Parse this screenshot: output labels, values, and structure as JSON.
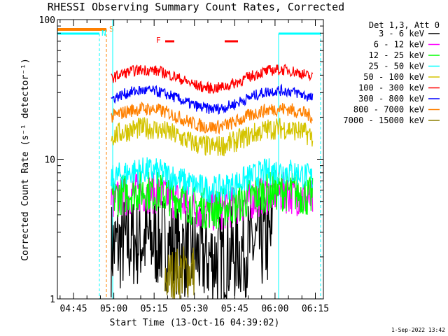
{
  "chart_data": {
    "type": "line",
    "title": "RHESSI Observing Summary Count Rates, Corrected",
    "xlabel": "Start Time (13-Oct-16 04:39:02)",
    "ylabel": "Corrected Count Rate (s⁻¹ detector⁻¹)",
    "y_scale": "log",
    "ylim": [
      1,
      100
    ],
    "xlim_minutes_clock": [
      "04:39",
      "06:18"
    ],
    "x_ticks": [
      "04:45",
      "05:00",
      "05:15",
      "05:30",
      "05:45",
      "06:00",
      "06:15"
    ],
    "y_ticks": [
      "1",
      "10",
      "100"
    ],
    "grid": false,
    "legend_title": "Det 1,3, Att 0",
    "legend_position": "right",
    "series": [
      {
        "name": "3 - 6 keV",
        "color": "#000000",
        "level": 2.3,
        "noise": 0.35,
        "start": "04:59",
        "end": "05:59"
      },
      {
        "name": "6 - 12 keV",
        "color": "#ff00ff",
        "level": 5.0,
        "noise": 0.15,
        "start": "04:59",
        "end": "06:14"
      },
      {
        "name": "12 - 25 keV",
        "color": "#00ff00",
        "level": 5.2,
        "noise": 0.15,
        "start": "04:59",
        "end": "06:14"
      },
      {
        "name": "25 - 50 keV",
        "color": "#00ffff",
        "level": 7.2,
        "noise": 0.1,
        "start": "04:59",
        "end": "06:14"
      },
      {
        "name": "50 - 100 keV",
        "color": "#d4c400",
        "level": 14.5,
        "noise": 0.08,
        "start": "04:59",
        "end": "06:14"
      },
      {
        "name": "100 - 300 keV",
        "color": "#ff0000",
        "level": 38,
        "noise": 0.04,
        "start": "04:59",
        "end": "06:14"
      },
      {
        "name": "300 - 800 keV",
        "color": "#0000ff",
        "level": 27,
        "noise": 0.04,
        "start": "04:59",
        "end": "06:14"
      },
      {
        "name": "800 - 7000 keV",
        "color": "#ff8000",
        "level": 20,
        "noise": 0.05,
        "start": "04:59",
        "end": "06:14"
      },
      {
        "name": "7000 - 15000 keV",
        "color": "#8b7d00",
        "level": 1.4,
        "noise": 0.2,
        "start": "05:19",
        "end": "05:30"
      }
    ],
    "annotations": [
      {
        "text": "S",
        "color": "#ff8000"
      },
      {
        "text": "N",
        "color": "#00ffff"
      },
      {
        "text": "F",
        "color": "#ff0000"
      }
    ]
  },
  "footer_timestamp": "1-Sep-2022 13:42"
}
